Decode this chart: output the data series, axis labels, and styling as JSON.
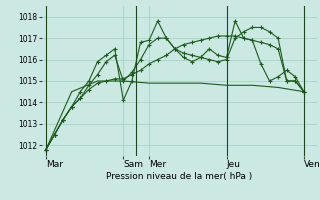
{
  "title": "Pression niveau de la mer( hPa )",
  "bg_color": "#cce8e2",
  "grid_color": "#9dcdc7",
  "line_color": "#1a5c1a",
  "vline_color": "#1a4a1a",
  "ylim": [
    1011.5,
    1018.5
  ],
  "yticks": [
    1012,
    1013,
    1014,
    1015,
    1016,
    1017,
    1018
  ],
  "day_labels": [
    "Mar",
    "Sam",
    "Mer",
    "Jeu",
    "Ven"
  ],
  "day_positions": [
    0,
    72,
    96,
    168,
    240
  ],
  "vline_positions": [
    0,
    84,
    168,
    240
  ],
  "xlim": [
    -4,
    252
  ],
  "series": [
    {
      "x": [
        0,
        8,
        16,
        24,
        32,
        40,
        48,
        56,
        64,
        72,
        80,
        88,
        96,
        104,
        112,
        120,
        128,
        136,
        144,
        152,
        160,
        168,
        176,
        184,
        192,
        200,
        208,
        216,
        224,
        232,
        240
      ],
      "y": [
        1011.8,
        1012.5,
        1013.2,
        1013.8,
        1014.2,
        1014.6,
        1014.9,
        1015.0,
        1015.1,
        1015.1,
        1015.3,
        1015.5,
        1015.8,
        1016.0,
        1016.2,
        1016.5,
        1016.7,
        1016.8,
        1016.9,
        1017.0,
        1017.1,
        1017.1,
        1017.1,
        1017.0,
        1016.9,
        1016.8,
        1016.7,
        1016.5,
        1015.0,
        1015.0,
        1014.5
      ]
    },
    {
      "x": [
        0,
        8,
        16,
        24,
        32,
        40,
        48,
        56,
        64,
        72,
        80,
        88,
        96,
        104,
        112,
        120,
        128,
        136,
        144,
        152,
        160,
        168,
        176,
        184,
        192,
        200,
        208,
        216,
        224,
        232,
        240
      ],
      "y": [
        1011.8,
        1012.5,
        1013.2,
        1013.8,
        1014.2,
        1014.8,
        1015.3,
        1015.9,
        1016.2,
        1015.0,
        1015.4,
        1016.0,
        1016.7,
        1017.0,
        1017.0,
        1016.5,
        1016.3,
        1016.2,
        1016.1,
        1016.0,
        1015.9,
        1016.0,
        1017.0,
        1017.3,
        1017.5,
        1017.5,
        1017.3,
        1017.0,
        1015.0,
        1015.0,
        1014.5
      ]
    },
    {
      "x": [
        0,
        8,
        16,
        24,
        32,
        40,
        48,
        56,
        64,
        72,
        80,
        88,
        96,
        104,
        112,
        120,
        128,
        136,
        144,
        152,
        160,
        168,
        176,
        184,
        192,
        200,
        208,
        216,
        224,
        232,
        240
      ],
      "y": [
        1011.8,
        1012.5,
        1013.2,
        1013.8,
        1014.5,
        1015.0,
        1015.9,
        1016.2,
        1016.5,
        1014.1,
        1015.0,
        1016.8,
        1016.9,
        1017.8,
        1017.0,
        1016.5,
        1016.1,
        1015.9,
        1016.1,
        1016.5,
        1016.2,
        1016.1,
        1017.8,
        1017.0,
        1016.9,
        1015.8,
        1015.0,
        1015.2,
        1015.5,
        1015.2,
        1014.5
      ]
    },
    {
      "x": [
        0,
        24,
        48,
        72,
        96,
        120,
        144,
        168,
        192,
        216,
        240
      ],
      "y": [
        1011.8,
        1014.5,
        1015.0,
        1015.0,
        1014.9,
        1014.9,
        1014.9,
        1014.8,
        1014.8,
        1014.7,
        1014.5
      ]
    }
  ]
}
